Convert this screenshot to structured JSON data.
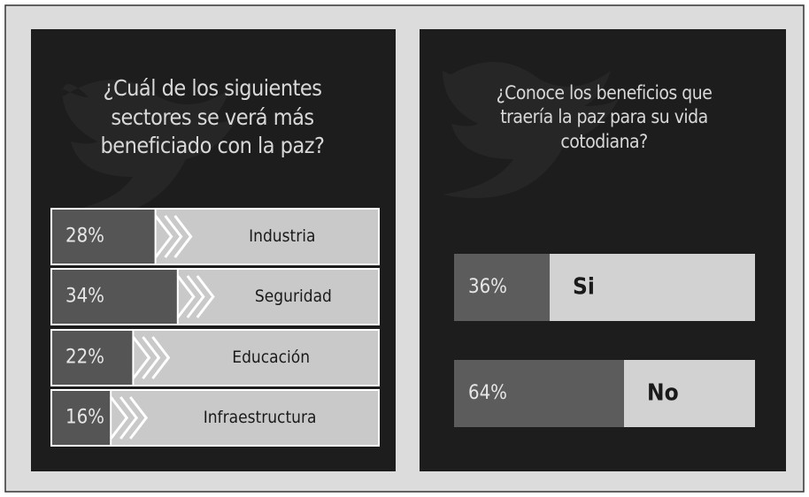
{
  "chart_data": [
    {
      "type": "bar",
      "title": "¿Cuál de los siguientes sectores se verá más beneficiado con la paz?",
      "categories": [
        "Industria",
        "Seguridad",
        "Educación",
        "Infraestructura"
      ],
      "values": [
        28,
        34,
        22,
        16
      ],
      "value_labels": [
        "28%",
        "34%",
        "22%",
        "16%"
      ],
      "color": "#555555",
      "track_color": "#c9c9c9",
      "chevrons": true
    },
    {
      "type": "bar",
      "title": "¿Conoce los beneficios que traería la paz para su vida cotodiana?",
      "categories": [
        "Si",
        "No"
      ],
      "values": [
        36,
        64
      ],
      "value_labels": [
        "36%",
        "64%"
      ],
      "color": "#5c5c5c",
      "track_color": "#d2d2d2",
      "chevrons": false
    }
  ]
}
